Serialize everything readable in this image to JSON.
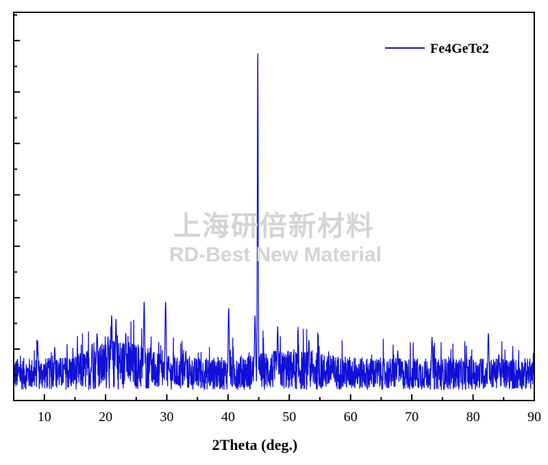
{
  "chart_data": {
    "type": "line",
    "title": "",
    "xlabel": "2Theta (deg.)",
    "ylabel": "",
    "xlim": [
      5,
      90
    ],
    "ylim": [
      0,
      100
    ],
    "x_ticks": [
      10,
      20,
      30,
      40,
      50,
      60,
      70,
      80,
      90
    ],
    "y_tick_labels": "none",
    "grid": false,
    "legend_position": "top-right",
    "series": [
      {
        "name": "Fe4GeTe2",
        "color": "#1010d8",
        "baseline": 6,
        "noise_amplitude": 9,
        "peaks": [
          {
            "x": 8.9,
            "y": 17
          },
          {
            "x": 11.7,
            "y": 15
          },
          {
            "x": 17.8,
            "y": 16
          },
          {
            "x": 18.6,
            "y": 19
          },
          {
            "x": 20.4,
            "y": 18
          },
          {
            "x": 21.0,
            "y": 24
          },
          {
            "x": 21.7,
            "y": 23
          },
          {
            "x": 23.3,
            "y": 19
          },
          {
            "x": 26.3,
            "y": 28
          },
          {
            "x": 27.3,
            "y": 15
          },
          {
            "x": 29.8,
            "y": 28
          },
          {
            "x": 33.1,
            "y": 14
          },
          {
            "x": 40.1,
            "y": 26
          },
          {
            "x": 44.4,
            "y": 24
          },
          {
            "x": 44.85,
            "y": 100
          },
          {
            "x": 48.1,
            "y": 21
          },
          {
            "x": 53.2,
            "y": 17
          },
          {
            "x": 67.7,
            "y": 14
          },
          {
            "x": 73.3,
            "y": 18
          },
          {
            "x": 82.5,
            "y": 19
          },
          {
            "x": 84.2,
            "y": 13
          }
        ]
      }
    ]
  },
  "watermark": {
    "line1": "上海研倍新材料",
    "line2": "RD-Best New Material"
  }
}
